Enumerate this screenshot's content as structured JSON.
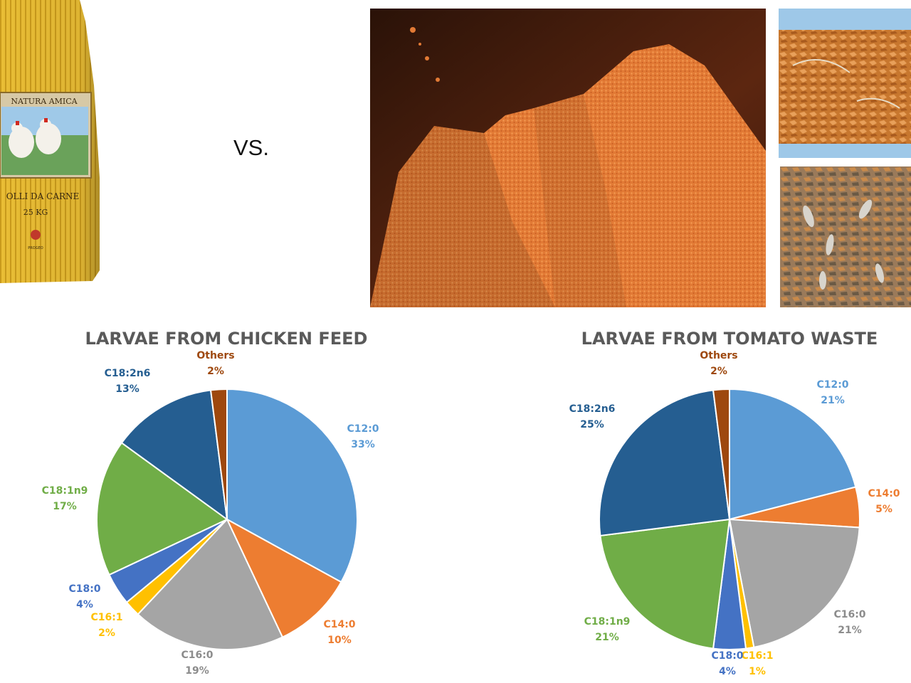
{
  "vs_label": "VS.",
  "feed_bag": {
    "brand": "NATURA AMICA",
    "product": "OLLI DA CARNE",
    "weight": "25 KG",
    "maker": "PROGEO",
    "color": "#e6b930"
  },
  "colors": {
    "C12:0": "#5b9bd5",
    "C14:0": "#ed7d31",
    "C16:0": "#a5a5a5",
    "C16:1": "#ffc000",
    "C18:0": "#4472c4",
    "C18:1n9": "#70ad47",
    "C18:2n6": "#255e91",
    "Others": "#9e480e"
  },
  "chart_data": [
    {
      "type": "pie",
      "title": "LARVAE FROM CHICKEN FEED",
      "slices": [
        {
          "label": "C12:0",
          "value": 33,
          "display": "33%"
        },
        {
          "label": "C14:0",
          "value": 10,
          "display": "10%"
        },
        {
          "label": "C16:0",
          "value": 19,
          "display": "19%"
        },
        {
          "label": "C16:1",
          "value": 2,
          "display": "2%"
        },
        {
          "label": "C18:0",
          "value": 4,
          "display": "4%"
        },
        {
          "label": "C18:1n9",
          "value": 17,
          "display": "17%"
        },
        {
          "label": "C18:2n6",
          "value": 13,
          "display": "13%"
        },
        {
          "label": "Others",
          "value": 2,
          "display": "2%"
        }
      ]
    },
    {
      "type": "pie",
      "title": "LARVAE FROM TOMATO WASTE",
      "slices": [
        {
          "label": "C12:0",
          "value": 21,
          "display": "21%"
        },
        {
          "label": "C14:0",
          "value": 5,
          "display": "5%"
        },
        {
          "label": "C16:0",
          "value": 21,
          "display": "21%"
        },
        {
          "label": "C16:1",
          "value": 1,
          "display": "1%"
        },
        {
          "label": "C18:0",
          "value": 4,
          "display": "4%"
        },
        {
          "label": "C18:1n9",
          "value": 21,
          "display": "21%"
        },
        {
          "label": "C18:2n6",
          "value": 25,
          "display": "25%"
        },
        {
          "label": "Others",
          "value": 2,
          "display": "2%"
        }
      ]
    }
  ]
}
